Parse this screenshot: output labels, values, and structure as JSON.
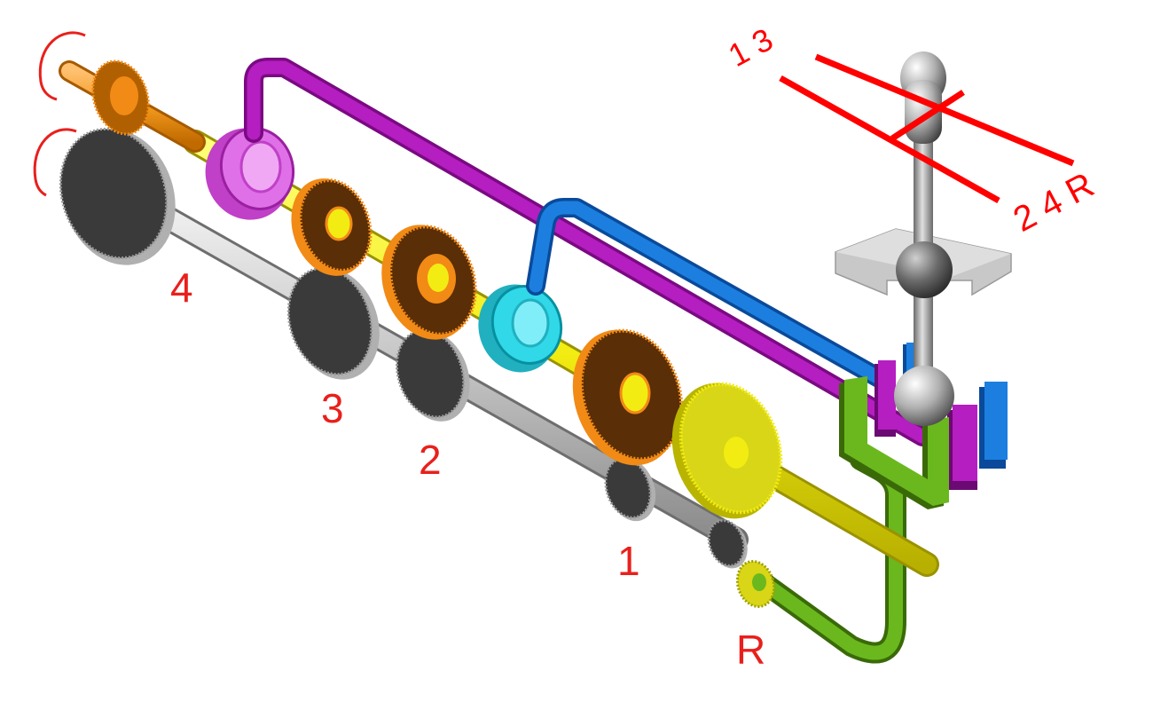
{
  "labels": {
    "gear_4": "4",
    "gear_3": "3",
    "gear_2": "2",
    "gear_1": "1",
    "gear_r": "R",
    "pattern_top": "1 3",
    "pattern_bottom": "2 4 R"
  },
  "colors": {
    "label": "#e8201c",
    "pattern": "#ff0000",
    "main_shaft": "#f2ec12",
    "counter_shaft": "#c9c9c9",
    "input_shaft": "#f39a1e",
    "gear_orange": "#f28a16",
    "gear_brown": "#5a2e06",
    "gear_dark": "#3a3a3a",
    "gear_yellow": "#d8d616",
    "rail_3_4": "#b51ec0",
    "rail_1_2": "#1c7fe0",
    "rail_r": "#5aa014",
    "synchro_3_4": "#e070e8",
    "synchro_1_2": "#30d8e8",
    "lever": "#9a9a9a",
    "plate": "#c8c8c8"
  },
  "icons": [
    "rotation-arrow-icon",
    "rotation-arrow-icon"
  ]
}
